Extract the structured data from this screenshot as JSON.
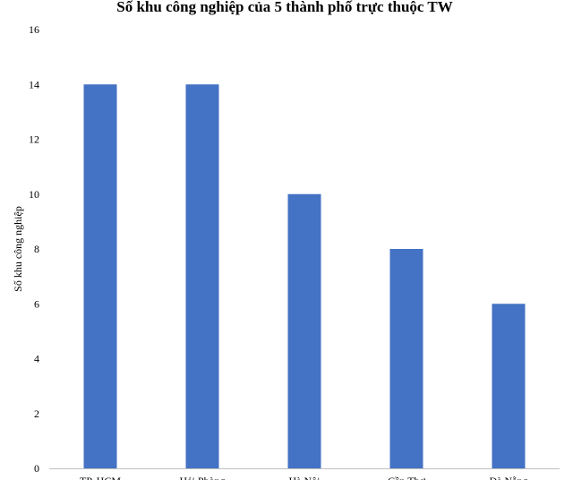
{
  "chart_data": {
    "type": "bar",
    "title": "Số khu công nghiệp của 5 thành phố trực thuộc TW",
    "xlabel": "",
    "ylabel": "Số khu công nghiệp",
    "categories": [
      "TP. HCM",
      "Hải Phòng",
      "Hà Nội",
      "Cần Thơ",
      "Đà Nẵng"
    ],
    "values": [
      14,
      14,
      10,
      8,
      6
    ],
    "ylim": [
      0,
      16
    ],
    "yticks": [
      0,
      2,
      4,
      6,
      8,
      10,
      12,
      14,
      16
    ],
    "grid": false,
    "legend": "none",
    "bar_color": "#4472C4"
  }
}
